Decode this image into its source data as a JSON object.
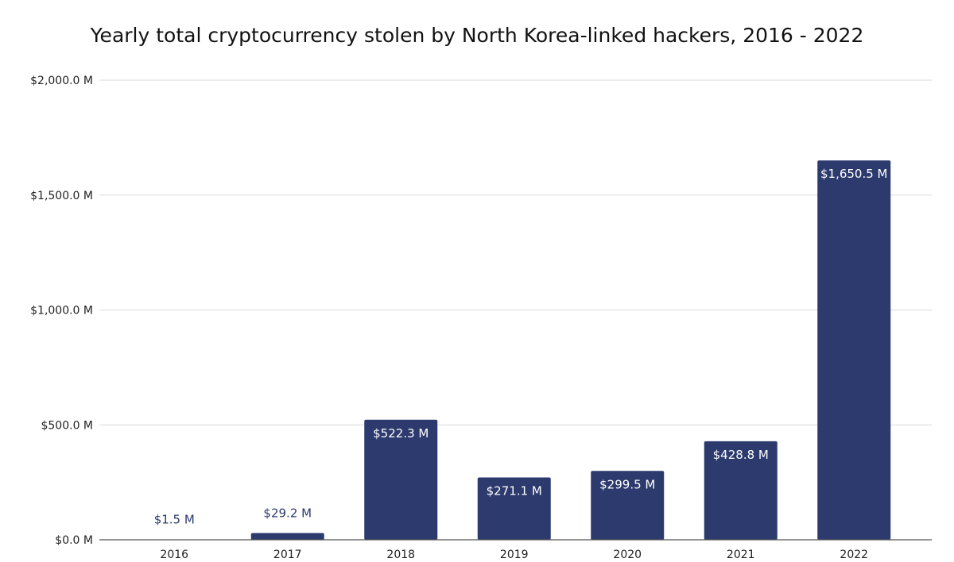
{
  "chart_data": {
    "type": "bar",
    "title": "Yearly total cryptocurrency stolen by North Korea-linked hackers, 2016 - 2022",
    "categories": [
      "2016",
      "2017",
      "2018",
      "2019",
      "2020",
      "2021",
      "2022"
    ],
    "values": [
      1.5,
      29.2,
      522.3,
      271.1,
      299.5,
      428.8,
      1650.5
    ],
    "data_labels": [
      "$1.5 M",
      "$29.2 M",
      "$522.3 M",
      "$271.1 M",
      "$299.5 M",
      "$428.8 M",
      "$1,650.5 M"
    ],
    "y_ticks": [
      0,
      500,
      1000,
      1500,
      2000
    ],
    "y_tick_labels": [
      "$0.0 M",
      "$500.0 M",
      "$1,000.0 M",
      "$1,500.0 M",
      "$2,000.0 M"
    ],
    "ylim": [
      0,
      2000
    ],
    "xlabel": "",
    "ylabel": "",
    "grid": true,
    "legend": "none",
    "colors": {
      "bar": "#2c3a6e",
      "label_inside": "#ffffff",
      "label_outside": "#2c3a6e",
      "grid": "#d9d9d9",
      "axis": "#555555"
    }
  }
}
